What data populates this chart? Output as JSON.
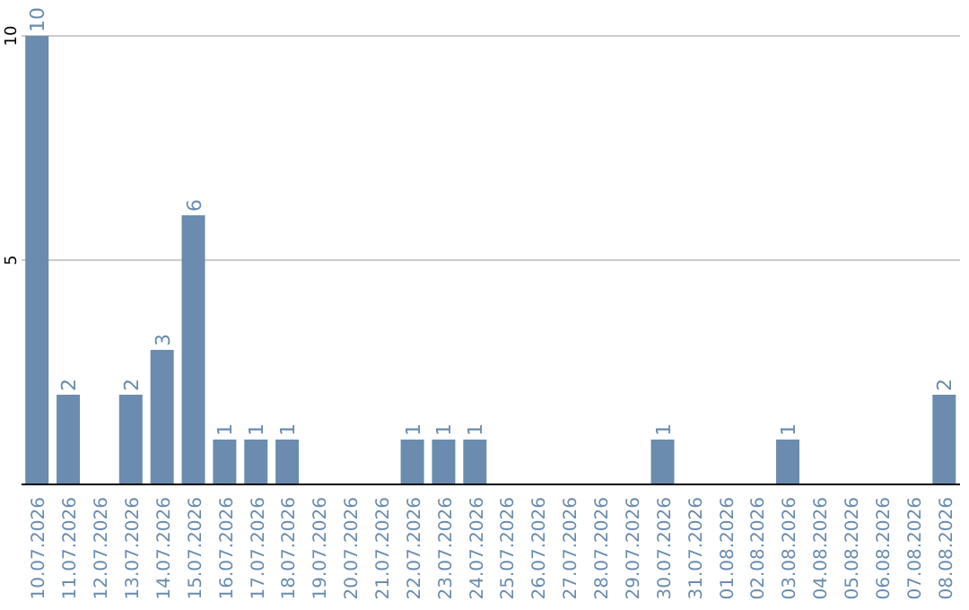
{
  "chart_data": {
    "type": "bar",
    "categories": [
      "10.07.2026",
      "11.07.2026",
      "12.07.2026",
      "13.07.2026",
      "14.07.2026",
      "15.07.2026",
      "16.07.2026",
      "17.07.2026",
      "18.07.2026",
      "19.07.2026",
      "20.07.2026",
      "21.07.2026",
      "22.07.2026",
      "23.07.2026",
      "24.07.2026",
      "25.07.2026",
      "26.07.2026",
      "27.07.2026",
      "28.07.2026",
      "29.07.2026",
      "30.07.2026",
      "31.07.2026",
      "01.08.2026",
      "02.08.2026",
      "03.08.2026",
      "04.08.2026",
      "05.08.2026",
      "06.08.2026",
      "07.08.2026",
      "08.08.2026"
    ],
    "values": [
      10,
      2,
      0,
      2,
      3,
      6,
      1,
      1,
      1,
      0,
      0,
      0,
      1,
      1,
      1,
      0,
      0,
      0,
      0,
      0,
      1,
      0,
      0,
      0,
      1,
      0,
      0,
      0,
      0,
      2
    ],
    "value_labels": [
      "10",
      "2",
      null,
      "2",
      "3",
      "6",
      "1",
      "1",
      "1",
      null,
      null,
      null,
      "1",
      "1",
      "1",
      null,
      null,
      null,
      null,
      null,
      "1",
      null,
      null,
      null,
      "1",
      null,
      null,
      null,
      null,
      "2"
    ],
    "color": "#6b8cae",
    "ylim": [
      0,
      10
    ],
    "yticks": [
      {
        "value": 0,
        "label": null
      },
      5,
      10
    ],
    "grid": "y"
  }
}
